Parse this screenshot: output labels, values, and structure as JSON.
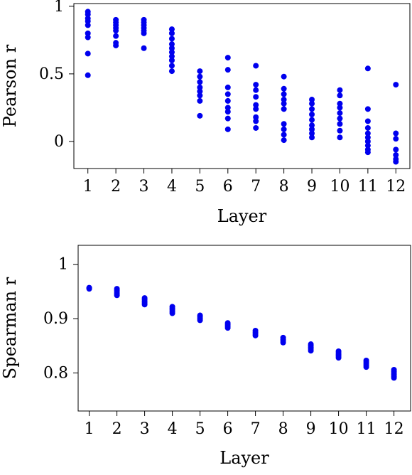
{
  "chart_data": [
    {
      "type": "scatter",
      "xlabel": "Layer",
      "ylabel": "Pearson r",
      "x_ticks": [
        1,
        2,
        3,
        4,
        5,
        6,
        7,
        8,
        9,
        10,
        11,
        12
      ],
      "y_ticks": [
        {
          "value": 0,
          "label": "0"
        },
        {
          "value": 0.5,
          "label": "0.5"
        },
        {
          "value": 1,
          "label": "1"
        }
      ],
      "xlim": [
        0.5,
        12.5
      ],
      "ylim": [
        -0.2,
        1.02
      ],
      "grid": false,
      "series": [
        {
          "color": "#0000ee",
          "points": [
            [
              1,
              0.96
            ],
            [
              1,
              0.94
            ],
            [
              1,
              0.91
            ],
            [
              1,
              0.89
            ],
            [
              1,
              0.86
            ],
            [
              1,
              0.8
            ],
            [
              1,
              0.77
            ],
            [
              1,
              0.65
            ],
            [
              1,
              0.49
            ],
            [
              2,
              0.9
            ],
            [
              2,
              0.88
            ],
            [
              2,
              0.86
            ],
            [
              2,
              0.84
            ],
            [
              2,
              0.82
            ],
            [
              2,
              0.78
            ],
            [
              2,
              0.73
            ],
            [
              2,
              0.71
            ],
            [
              3,
              0.9
            ],
            [
              3,
              0.88
            ],
            [
              3,
              0.86
            ],
            [
              3,
              0.84
            ],
            [
              3,
              0.82
            ],
            [
              3,
              0.8
            ],
            [
              3,
              0.69
            ],
            [
              4,
              0.83
            ],
            [
              4,
              0.8
            ],
            [
              4,
              0.76
            ],
            [
              4,
              0.72
            ],
            [
              4,
              0.69
            ],
            [
              4,
              0.66
            ],
            [
              4,
              0.63
            ],
            [
              4,
              0.6
            ],
            [
              4,
              0.56
            ],
            [
              4,
              0.52
            ],
            [
              5,
              0.52
            ],
            [
              5,
              0.48
            ],
            [
              5,
              0.44
            ],
            [
              5,
              0.4
            ],
            [
              5,
              0.37
            ],
            [
              5,
              0.34
            ],
            [
              5,
              0.3
            ],
            [
              5,
              0.19
            ],
            [
              6,
              0.62
            ],
            [
              6,
              0.53
            ],
            [
              6,
              0.4
            ],
            [
              6,
              0.35
            ],
            [
              6,
              0.3
            ],
            [
              6,
              0.25
            ],
            [
              6,
              0.22
            ],
            [
              6,
              0.17
            ],
            [
              6,
              0.09
            ],
            [
              7,
              0.56
            ],
            [
              7,
              0.42
            ],
            [
              7,
              0.38
            ],
            [
              7,
              0.33
            ],
            [
              7,
              0.27
            ],
            [
              7,
              0.24
            ],
            [
              7,
              0.18
            ],
            [
              7,
              0.15
            ],
            [
              7,
              0.1
            ],
            [
              8,
              0.48
            ],
            [
              8,
              0.39
            ],
            [
              8,
              0.35
            ],
            [
              8,
              0.31
            ],
            [
              8,
              0.28
            ],
            [
              8,
              0.24
            ],
            [
              8,
              0.13
            ],
            [
              8,
              0.09
            ],
            [
              8,
              0.05
            ],
            [
              8,
              0.01
            ],
            [
              9,
              0.31
            ],
            [
              9,
              0.28
            ],
            [
              9,
              0.24
            ],
            [
              9,
              0.2
            ],
            [
              9,
              0.16
            ],
            [
              9,
              0.12
            ],
            [
              9,
              0.09
            ],
            [
              9,
              0.06
            ],
            [
              9,
              0.03
            ],
            [
              10,
              0.38
            ],
            [
              10,
              0.34
            ],
            [
              10,
              0.28
            ],
            [
              10,
              0.25
            ],
            [
              10,
              0.21
            ],
            [
              10,
              0.17
            ],
            [
              10,
              0.13
            ],
            [
              10,
              0.08
            ],
            [
              10,
              0.03
            ],
            [
              11,
              0.54
            ],
            [
              11,
              0.24
            ],
            [
              11,
              0.15
            ],
            [
              11,
              0.1
            ],
            [
              11,
              0.06
            ],
            [
              11,
              0.03
            ],
            [
              11,
              0.0
            ],
            [
              11,
              -0.03
            ],
            [
              11,
              -0.06
            ],
            [
              11,
              -0.08
            ],
            [
              12,
              0.42
            ],
            [
              12,
              0.06
            ],
            [
              12,
              0.02
            ],
            [
              12,
              -0.06
            ],
            [
              12,
              -0.1
            ],
            [
              12,
              -0.13
            ],
            [
              12,
              -0.15
            ]
          ]
        }
      ]
    },
    {
      "type": "scatter",
      "xlabel": "Layer",
      "ylabel": "Spearman r",
      "x_ticks": [
        1,
        2,
        3,
        4,
        5,
        6,
        7,
        8,
        9,
        10,
        11,
        12
      ],
      "y_ticks": [
        {
          "value": 0.8,
          "label": "0.8"
        },
        {
          "value": 0.9,
          "label": "0.9"
        },
        {
          "value": 1,
          "label": "1"
        }
      ],
      "xlim": [
        0.6,
        12.6
      ],
      "ylim": [
        0.73,
        1.035
      ],
      "grid": false,
      "series": [
        {
          "color": "#0000ee",
          "points": [
            [
              1,
              0.957
            ],
            [
              1,
              0.956
            ],
            [
              1,
              0.955
            ],
            [
              2,
              0.955
            ],
            [
              2,
              0.952
            ],
            [
              2,
              0.949
            ],
            [
              2,
              0.946
            ],
            [
              2,
              0.943
            ],
            [
              3,
              0.938
            ],
            [
              3,
              0.935
            ],
            [
              3,
              0.932
            ],
            [
              3,
              0.929
            ],
            [
              3,
              0.926
            ],
            [
              4,
              0.922
            ],
            [
              4,
              0.919
            ],
            [
              4,
              0.916
            ],
            [
              4,
              0.913
            ],
            [
              4,
              0.91
            ],
            [
              5,
              0.906
            ],
            [
              5,
              0.903
            ],
            [
              5,
              0.9
            ],
            [
              5,
              0.897
            ],
            [
              6,
              0.892
            ],
            [
              6,
              0.889
            ],
            [
              6,
              0.886
            ],
            [
              6,
              0.883
            ],
            [
              7,
              0.878
            ],
            [
              7,
              0.875
            ],
            [
              7,
              0.872
            ],
            [
              7,
              0.869
            ],
            [
              8,
              0.865
            ],
            [
              8,
              0.862
            ],
            [
              8,
              0.859
            ],
            [
              8,
              0.856
            ],
            [
              9,
              0.853
            ],
            [
              9,
              0.85
            ],
            [
              9,
              0.847
            ],
            [
              9,
              0.844
            ],
            [
              9,
              0.841
            ],
            [
              10,
              0.84
            ],
            [
              10,
              0.837
            ],
            [
              10,
              0.834
            ],
            [
              10,
              0.831
            ],
            [
              10,
              0.828
            ],
            [
              11,
              0.823
            ],
            [
              11,
              0.82
            ],
            [
              11,
              0.817
            ],
            [
              11,
              0.814
            ],
            [
              11,
              0.811
            ],
            [
              12,
              0.806
            ],
            [
              12,
              0.803
            ],
            [
              12,
              0.8
            ],
            [
              12,
              0.797
            ],
            [
              12,
              0.794
            ],
            [
              12,
              0.791
            ]
          ]
        }
      ]
    }
  ]
}
